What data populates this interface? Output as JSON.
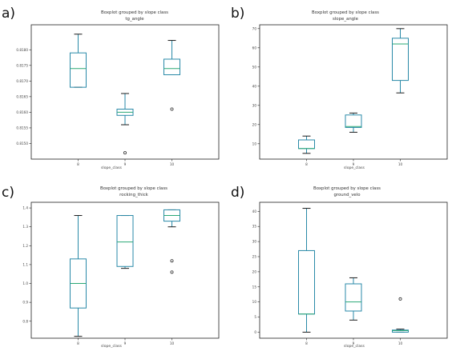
{
  "colors": {
    "box": "#2a8aa8",
    "median": "#2aa876",
    "cap": "#1c1c1c",
    "frame": "#222222"
  },
  "chart_data": [
    {
      "type": "box",
      "panel_label": "a)",
      "title": "Boxplot grouped by slope class",
      "subtitle": "tg_angle",
      "xlabel": "slope_class",
      "categories": [
        "8",
        "9",
        "10"
      ],
      "ylim": [
        0.8145,
        0.8188
      ],
      "yticks": [
        0.815,
        0.8155,
        0.816,
        0.8165,
        0.817,
        0.8175,
        0.818
      ],
      "ytick_labels": [
        "0.8150",
        "0.8155",
        "0.8160",
        "0.8165",
        "0.8170",
        "0.8175",
        "0.8180"
      ],
      "boxes": [
        {
          "category": "8",
          "whislo": 0.8168,
          "q1": 0.8168,
          "med": 0.8174,
          "q3": 0.8179,
          "whishi": 0.8185,
          "fliers": []
        },
        {
          "category": "9",
          "whislo": 0.8156,
          "q1": 0.8159,
          "med": 0.816,
          "q3": 0.8161,
          "whishi": 0.8166,
          "fliers": [
            0.8147
          ]
        },
        {
          "category": "10",
          "whislo": 0.8172,
          "q1": 0.8172,
          "med": 0.8174,
          "q3": 0.8177,
          "whishi": 0.8183,
          "fliers": [
            0.8161
          ]
        }
      ]
    },
    {
      "type": "box",
      "panel_label": "b)",
      "title": "Boxplot grouped by slope class",
      "subtitle": "slope_angle",
      "xlabel": "slope_class",
      "categories": [
        "8",
        "9",
        "10"
      ],
      "ylim": [
        2,
        72
      ],
      "yticks": [
        10,
        20,
        30,
        40,
        50,
        60,
        70
      ],
      "ytick_labels": [
        "10",
        "20",
        "30",
        "40",
        "50",
        "60",
        "70"
      ],
      "boxes": [
        {
          "category": "8",
          "whislo": 5,
          "q1": 7.5,
          "med": 7.5,
          "q3": 12,
          "whishi": 14,
          "fliers": []
        },
        {
          "category": "9",
          "whislo": 16,
          "q1": 18.5,
          "med": 19,
          "q3": 25,
          "whishi": 26,
          "fliers": []
        },
        {
          "category": "10",
          "whislo": 36.5,
          "q1": 43,
          "med": 62,
          "q3": 65,
          "whishi": 70,
          "fliers": []
        }
      ]
    },
    {
      "type": "box",
      "panel_label": "c)",
      "title": "Boxplot grouped by slope class",
      "subtitle": "rocking_thick",
      "xlabel": "slope_class",
      "categories": [
        "8",
        "9",
        "10"
      ],
      "ylim": [
        0.71,
        1.43
      ],
      "yticks": [
        0.8,
        0.9,
        1.0,
        1.1,
        1.2,
        1.3,
        1.4
      ],
      "ytick_labels": [
        "0.8",
        "0.9",
        "1.0",
        "1.1",
        "1.2",
        "1.3",
        "1.4"
      ],
      "boxes": [
        {
          "category": "8",
          "whislo": 0.72,
          "q1": 0.87,
          "med": 1.0,
          "q3": 1.13,
          "whishi": 1.36,
          "fliers": []
        },
        {
          "category": "9",
          "whislo": 1.08,
          "q1": 1.09,
          "med": 1.22,
          "q3": 1.36,
          "whishi": 1.36,
          "fliers": []
        },
        {
          "category": "10",
          "whislo": 1.3,
          "q1": 1.33,
          "med": 1.36,
          "q3": 1.39,
          "whishi": 1.39,
          "fliers": [
            1.12,
            1.06
          ]
        }
      ]
    },
    {
      "type": "box",
      "panel_label": "d)",
      "title": "Boxplot grouped by slope class",
      "subtitle": "ground_velo",
      "xlabel": "slope_class",
      "categories": [
        "8",
        "9",
        "10"
      ],
      "ylim": [
        -2,
        43
      ],
      "yticks": [
        0,
        5,
        10,
        15,
        20,
        25,
        30,
        35,
        40
      ],
      "ytick_labels": [
        "0",
        "5",
        "10",
        "15",
        "20",
        "25",
        "30",
        "35",
        "40"
      ],
      "boxes": [
        {
          "category": "8",
          "whislo": 0,
          "q1": 6,
          "med": 6,
          "q3": 27,
          "whishi": 41,
          "fliers": []
        },
        {
          "category": "9",
          "whislo": 4,
          "q1": 7,
          "med": 10,
          "q3": 16,
          "whishi": 18,
          "fliers": []
        },
        {
          "category": "10",
          "whislo": 0,
          "q1": 0,
          "med": 0.5,
          "q3": 0.7,
          "whishi": 1,
          "fliers": [
            11
          ]
        }
      ]
    }
  ]
}
